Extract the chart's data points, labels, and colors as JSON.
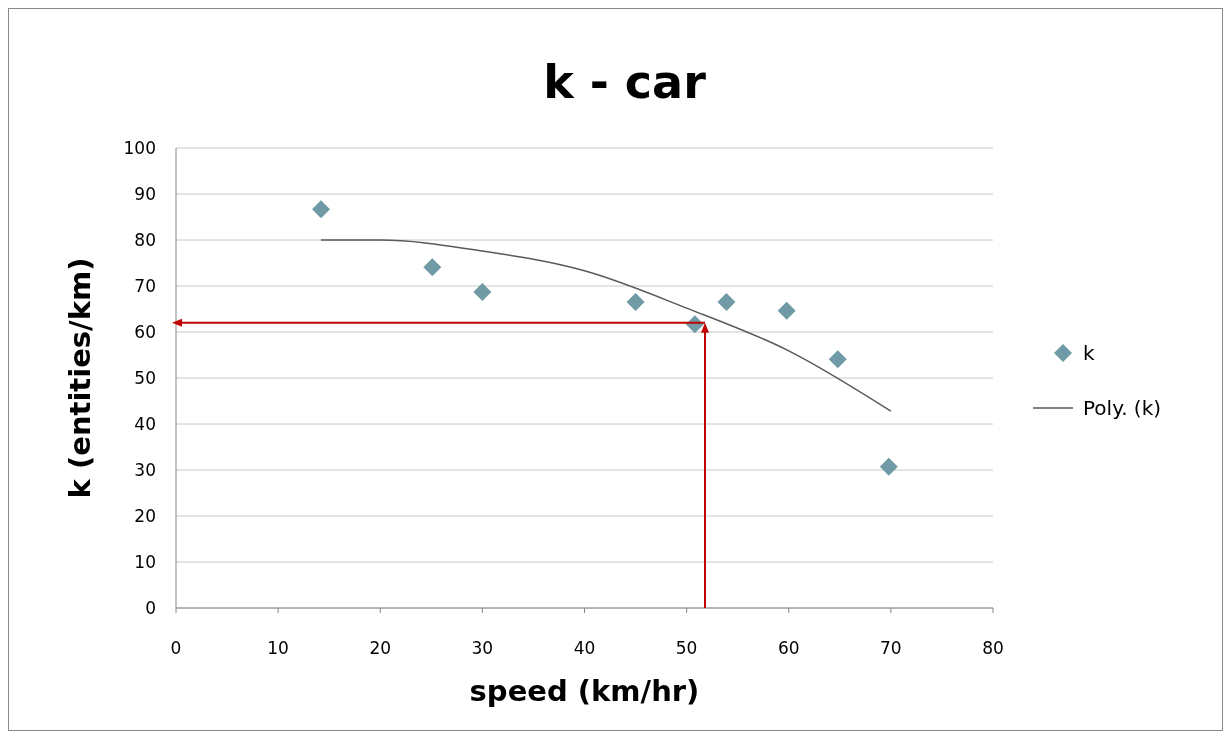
{
  "chart_data": {
    "type": "scatter",
    "title": "k - car",
    "xlabel": "speed (km/hr)",
    "ylabel": "k (entities/km)",
    "xlim": [
      0,
      80
    ],
    "xticks": [
      0,
      10,
      20,
      30,
      40,
      50,
      60,
      70,
      80
    ],
    "ylim": [
      0,
      100
    ],
    "yticks": [
      0,
      10,
      20,
      30,
      40,
      50,
      60,
      70,
      80,
      90,
      100
    ],
    "grid": "y",
    "legend": "right",
    "marker": "diamond",
    "series": [
      {
        "name": "k",
        "color": "#6f9aa6",
        "x": [
          14.2,
          25.1,
          30,
          45,
          50.8,
          53.9,
          59.8,
          64.8,
          69.8
        ],
        "values": [
          86.7,
          74.1,
          68.7,
          66.5,
          61.7,
          66.5,
          64.6,
          54.1,
          30.7
        ]
      },
      {
        "name": "Poly. (k)",
        "type": "line",
        "color": "#595959",
        "marker": "none",
        "x": [
          14.2,
          20,
          30,
          40,
          50,
          60,
          70
        ],
        "values": [
          80,
          80,
          77.6,
          73.3,
          65.2,
          55.9,
          42.8
        ]
      }
    ],
    "ref_lines": [
      {
        "axis": "y",
        "value": 62,
        "color": "#c00000"
      },
      {
        "axis": "x",
        "value": 51.8,
        "color": "#c00000"
      }
    ]
  }
}
